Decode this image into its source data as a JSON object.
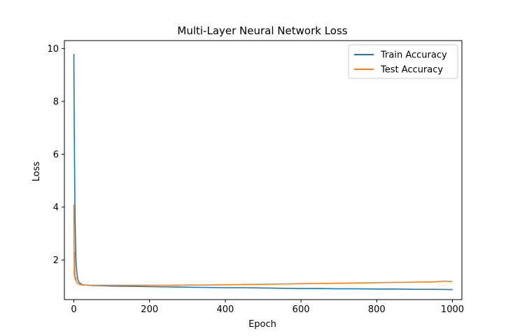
{
  "chart_data": {
    "type": "line",
    "title": "Multi-Layer Neural Network Loss",
    "xlabel": "Epoch",
    "ylabel": "Loss",
    "xlim": [
      -25,
      1025
    ],
    "ylim": [
      0.5,
      10.3
    ],
    "xticks": [
      0,
      200,
      400,
      600,
      800,
      1000
    ],
    "yticks": [
      2,
      4,
      6,
      8,
      10
    ],
    "grid": false,
    "legend_position": "top-right",
    "series": [
      {
        "name": "Train Accuracy",
        "color": "#1f77b4",
        "x": [
          0,
          1,
          2,
          3,
          4,
          5,
          6,
          8,
          10,
          12,
          15,
          20,
          25,
          30,
          40,
          50,
          60,
          80,
          100,
          150,
          200,
          250,
          300,
          350,
          400,
          450,
          500,
          550,
          600,
          650,
          700,
          750,
          800,
          850,
          900,
          950,
          1000
        ],
        "y": [
          9.8,
          7.2,
          5.3,
          3.9,
          2.9,
          2.3,
          1.9,
          1.5,
          1.3,
          1.2,
          1.13,
          1.08,
          1.06,
          1.05,
          1.04,
          1.03,
          1.03,
          1.02,
          1.01,
          1.0,
          0.99,
          0.98,
          0.97,
          0.96,
          0.95,
          0.95,
          0.94,
          0.93,
          0.92,
          0.92,
          0.91,
          0.91,
          0.9,
          0.9,
          0.89,
          0.89,
          0.88
        ]
      },
      {
        "name": "Test Accuracy",
        "color": "#ff7f0e",
        "x": [
          0,
          1,
          2,
          3,
          4,
          5,
          6,
          8,
          10,
          12,
          15,
          20,
          25,
          30,
          40,
          50,
          60,
          80,
          100,
          150,
          200,
          250,
          300,
          350,
          400,
          450,
          500,
          550,
          600,
          650,
          700,
          750,
          800,
          850,
          900,
          950,
          980,
          1000
        ],
        "y": [
          4.1,
          1.4,
          2.3,
          1.3,
          1.25,
          1.35,
          1.2,
          1.15,
          1.12,
          1.1,
          1.07,
          1.06,
          1.05,
          1.05,
          1.04,
          1.04,
          1.04,
          1.04,
          1.04,
          1.04,
          1.04,
          1.04,
          1.05,
          1.05,
          1.06,
          1.07,
          1.08,
          1.09,
          1.1,
          1.11,
          1.12,
          1.13,
          1.14,
          1.15,
          1.16,
          1.17,
          1.2,
          1.18
        ]
      }
    ]
  }
}
